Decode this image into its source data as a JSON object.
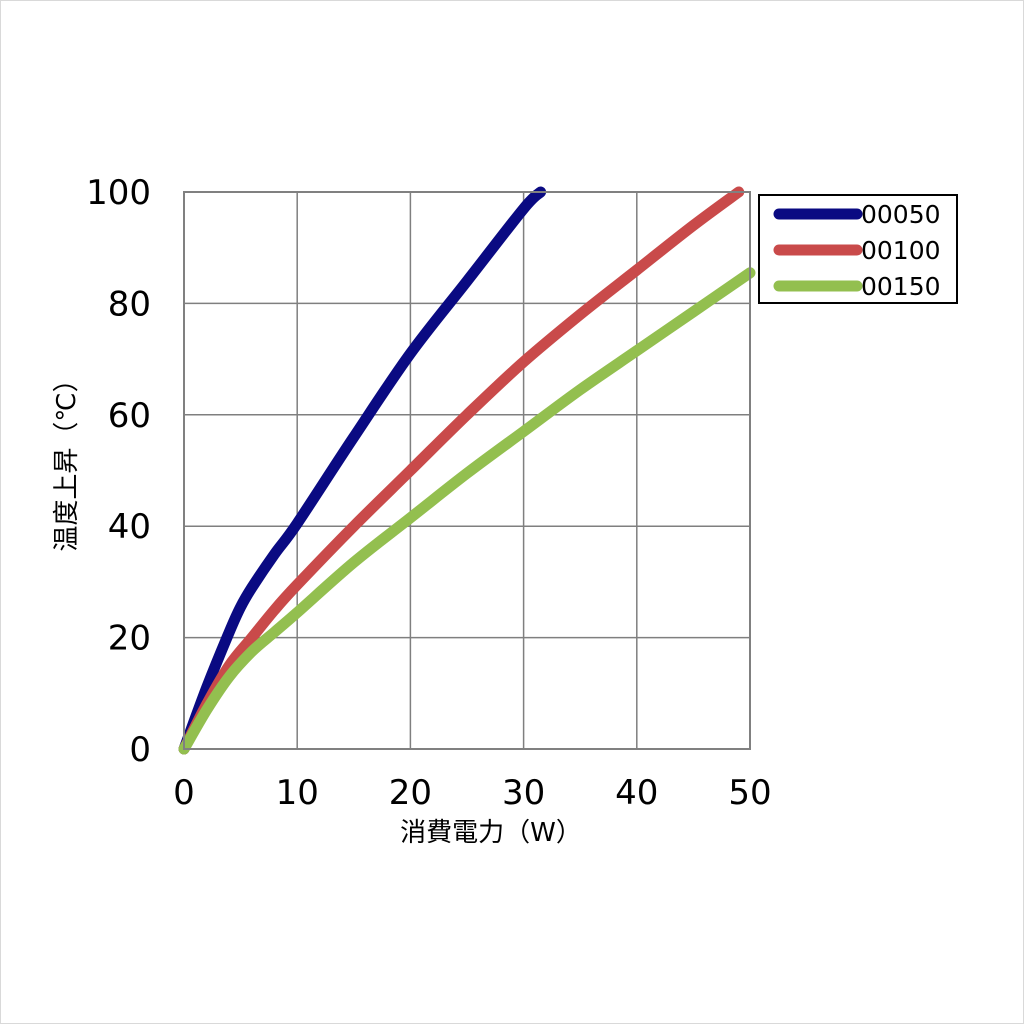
{
  "chart_data": {
    "type": "line",
    "xlabel": "消費電力（W）",
    "ylabel": "温度上昇（℃）",
    "xlim": [
      0,
      50
    ],
    "ylim": [
      0,
      100
    ],
    "x_ticks": [
      0,
      10,
      20,
      30,
      40,
      50
    ],
    "y_ticks": [
      0,
      20,
      40,
      60,
      80,
      100
    ],
    "grid": true,
    "legend_position": "top-right-outside",
    "series": [
      {
        "name": "00050",
        "color": "#0a0a82",
        "x": [
          0,
          2,
          4,
          5,
          6,
          8,
          10,
          15,
          20,
          25,
          30,
          31.5
        ],
        "y": [
          0,
          11,
          21,
          25.5,
          29,
          35,
          40.5,
          56,
          71,
          84,
          97,
          100
        ]
      },
      {
        "name": "00100",
        "color": "#c94a4a",
        "x": [
          0,
          2,
          4,
          6,
          8,
          10,
          15,
          20,
          25,
          30,
          35,
          40,
          45,
          49
        ],
        "y": [
          0,
          8,
          15,
          20,
          25,
          29.5,
          40,
          50,
          60,
          69.5,
          78,
          86,
          94,
          100
        ]
      },
      {
        "name": "00150",
        "color": "#93bf4f",
        "x": [
          0,
          2,
          4,
          6,
          8,
          10,
          15,
          20,
          25,
          30,
          35,
          40,
          45,
          50
        ],
        "y": [
          0,
          7,
          13,
          17.5,
          21,
          24.5,
          33.5,
          41.5,
          49.5,
          57,
          64.5,
          71.5,
          78.5,
          85.5
        ]
      }
    ]
  }
}
